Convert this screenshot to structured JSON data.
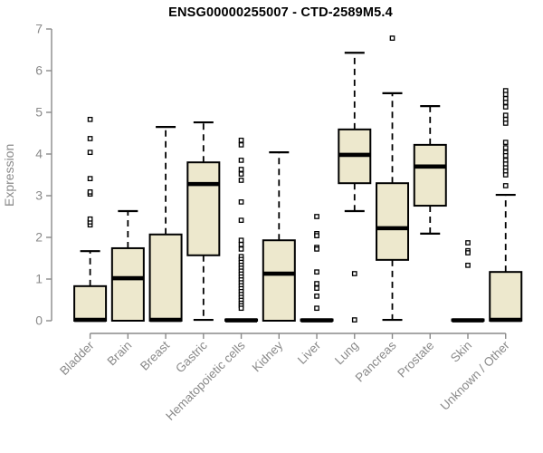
{
  "chart_data": {
    "type": "boxplot",
    "title": "ENSG00000255007 - CTD-2589M5.4",
    "xlabel": "",
    "ylabel": "Expression",
    "ylim": [
      0,
      7
    ],
    "yticks": [
      0,
      1,
      2,
      3,
      4,
      5,
      6,
      7
    ],
    "grid": false,
    "legend": false,
    "categories": [
      "Bladder",
      "Brain",
      "Breast",
      "Gastric",
      "Hematopoietic cells",
      "Kidney",
      "Liver",
      "Lung",
      "Pancreas",
      "Prostate",
      "Skin",
      "Unknown / Other"
    ],
    "series": [
      {
        "name": "Bladder",
        "whisker_low": 0,
        "q1": 0,
        "median": 0.02,
        "q3": 0.83,
        "whisker_high": 1.67,
        "outliers": [
          2.3,
          2.37,
          2.44,
          3.04,
          3.09,
          3.41,
          4.04,
          4.37,
          4.83
        ]
      },
      {
        "name": "Brain",
        "whisker_low": 0,
        "q1": 0,
        "median": 1.02,
        "q3": 1.74,
        "whisker_high": 2.63,
        "outliers": []
      },
      {
        "name": "Breast",
        "whisker_low": 0,
        "q1": 0,
        "median": 0.02,
        "q3": 2.07,
        "whisker_high": 4.65,
        "outliers": []
      },
      {
        "name": "Gastric",
        "whisker_low": 0.02,
        "q1": 1.57,
        "median": 3.28,
        "q3": 3.8,
        "whisker_high": 4.76,
        "outliers": []
      },
      {
        "name": "Hematopoietic cells",
        "whisker_low": 0,
        "q1": 0,
        "median": 0.01,
        "q3": 0.03,
        "whisker_high": 0.04,
        "outliers": [
          4.33,
          4.22,
          3.85,
          3.63,
          3.52,
          3.37,
          2.85,
          2.41,
          1.93,
          1.83,
          1.72,
          1.54,
          1.47,
          1.4,
          1.33,
          1.26,
          1.19,
          1.12,
          1.05,
          0.98,
          0.91,
          0.84,
          0.77,
          0.7,
          0.63,
          0.56,
          0.49,
          0.42,
          0.36,
          0.3
        ]
      },
      {
        "name": "Kidney",
        "whisker_low": 0,
        "q1": 0,
        "median": 1.13,
        "q3": 1.93,
        "whisker_high": 4.04,
        "outliers": []
      },
      {
        "name": "Liver",
        "whisker_low": 0,
        "q1": 0,
        "median": 0.01,
        "q3": 0.03,
        "whisker_high": 0.04,
        "outliers": [
          2.5,
          2.09,
          2.04,
          1.76,
          1.72,
          1.17,
          0.89,
          0.78,
          0.59,
          0.3
        ]
      },
      {
        "name": "Lung",
        "whisker_low": 2.63,
        "q1": 3.3,
        "median": 3.98,
        "q3": 4.59,
        "whisker_high": 6.43,
        "outliers": [
          1.13,
          0.02
        ]
      },
      {
        "name": "Pancreas",
        "whisker_low": 0.02,
        "q1": 1.46,
        "median": 2.22,
        "q3": 3.3,
        "whisker_high": 5.46,
        "outliers": [
          6.78
        ]
      },
      {
        "name": "Prostate",
        "whisker_low": 2.09,
        "q1": 2.76,
        "median": 3.7,
        "q3": 4.22,
        "whisker_high": 5.15,
        "outliers": []
      },
      {
        "name": "Skin",
        "whisker_low": 0,
        "q1": 0,
        "median": 0.01,
        "q3": 0.03,
        "whisker_high": 0.04,
        "outliers": [
          1.87,
          1.68,
          1.63,
          1.33
        ]
      },
      {
        "name": "Unknown / Other",
        "whisker_low": 0,
        "q1": 0,
        "median": 0.02,
        "q3": 1.17,
        "whisker_high": 3.02,
        "outliers": [
          5.52,
          5.43,
          5.33,
          5.24,
          5.13,
          4.93,
          4.83,
          4.74,
          4.28,
          4.15,
          4.04,
          3.96,
          3.85,
          3.76,
          3.67,
          3.59,
          3.5,
          3.24
        ]
      }
    ]
  },
  "style": {
    "box_fill": "#EDE8CD",
    "box_stroke": "#000000",
    "median_color": "#000000",
    "outlier_fill": "#FFFFFF",
    "outlier_stroke": "#000000",
    "axis_color": "#8A8A8A",
    "tick_label_color": "#8A8A8A",
    "title_color": "#000000",
    "background": "#FFFFFF"
  }
}
